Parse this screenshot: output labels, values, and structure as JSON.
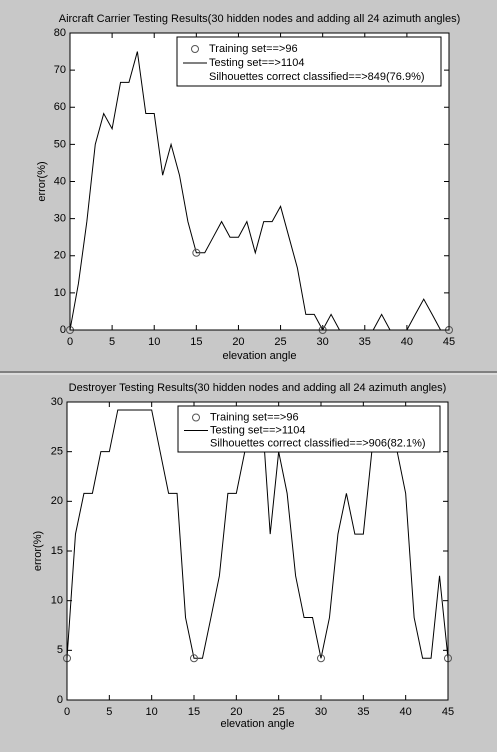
{
  "chart_data": [
    {
      "type": "line",
      "title": "Aircraft Carrier Testing Results(30 hidden nodes and adding all 24 azimuth angles)",
      "xlabel": "elevation angle",
      "ylabel": "error(%)",
      "x": [
        0,
        1,
        2,
        3,
        4,
        5,
        6,
        7,
        8,
        9,
        10,
        11,
        12,
        13,
        14,
        15,
        16,
        17,
        18,
        19,
        20,
        21,
        22,
        23,
        24,
        25,
        26,
        27,
        28,
        29,
        30,
        31,
        32,
        33,
        34,
        35,
        36,
        37,
        38,
        39,
        40,
        41,
        42,
        43,
        44,
        45
      ],
      "series": [
        {
          "name": "Training set==>96",
          "color": "#555555",
          "style": "marker",
          "values": [
            0,
            null,
            null,
            null,
            null,
            null,
            null,
            null,
            null,
            null,
            null,
            null,
            null,
            null,
            null,
            20.8,
            null,
            null,
            null,
            null,
            null,
            null,
            null,
            null,
            null,
            null,
            null,
            null,
            null,
            null,
            0,
            null,
            null,
            null,
            null,
            null,
            null,
            null,
            null,
            null,
            null,
            null,
            null,
            null,
            null,
            0
          ]
        },
        {
          "name": "Testing set==>1104",
          "color": "#000000",
          "style": "line",
          "values": [
            0,
            12.5,
            29.2,
            50,
            58.3,
            54.2,
            66.7,
            66.7,
            75,
            58.3,
            58.3,
            41.7,
            50,
            41.7,
            29.2,
            20.8,
            20.8,
            25,
            29.2,
            25,
            25,
            29.2,
            20.8,
            29.2,
            29.2,
            33.3,
            25,
            16.7,
            4.2,
            4.2,
            0,
            4.2,
            0,
            0,
            0,
            0,
            0,
            4.2,
            0,
            0,
            0,
            4.2,
            8.3,
            4.2,
            0,
            0
          ]
        }
      ],
      "annotation": "Silhouettes correct classified==>849(76.9%)",
      "legend": "upper right",
      "xlim": [
        0,
        45
      ],
      "xticks": [
        0,
        5,
        10,
        15,
        20,
        25,
        30,
        35,
        40,
        45
      ],
      "ylim": [
        0,
        80
      ],
      "yticks": [
        0,
        10,
        20,
        30,
        40,
        50,
        60,
        70,
        80
      ]
    },
    {
      "type": "line",
      "title": "Destroyer Testing Results(30 hidden nodes and adding all 24 azimuth angles)",
      "xlabel": "elevation angle",
      "ylabel": "error(%)",
      "x": [
        0,
        1,
        2,
        3,
        4,
        5,
        6,
        7,
        8,
        9,
        10,
        11,
        12,
        13,
        14,
        15,
        16,
        17,
        18,
        19,
        20,
        21,
        22,
        23,
        24,
        25,
        26,
        27,
        28,
        29,
        30,
        31,
        32,
        33,
        34,
        35,
        36,
        37,
        38,
        39,
        40,
        41,
        42,
        43,
        44,
        45
      ],
      "series": [
        {
          "name": "Training set==>96",
          "color": "#555555",
          "style": "marker",
          "values": [
            4.2,
            null,
            null,
            null,
            null,
            null,
            null,
            null,
            null,
            null,
            null,
            null,
            null,
            null,
            null,
            4.2,
            null,
            null,
            null,
            null,
            null,
            null,
            null,
            null,
            null,
            null,
            null,
            null,
            null,
            null,
            4.2,
            null,
            null,
            null,
            null,
            null,
            null,
            null,
            null,
            null,
            null,
            null,
            null,
            null,
            null,
            4.2
          ]
        },
        {
          "name": "Testing set==>1104",
          "color": "#000000",
          "style": "line",
          "values": [
            4.2,
            16.7,
            20.8,
            20.8,
            25,
            25,
            29.2,
            29.2,
            29.2,
            29.2,
            29.2,
            25,
            20.8,
            20.8,
            8.3,
            4.2,
            4.2,
            8.3,
            12.5,
            20.8,
            20.8,
            25,
            29.2,
            29.2,
            16.7,
            25,
            20.8,
            12.5,
            8.3,
            8.3,
            4.2,
            8.3,
            16.7,
            20.8,
            16.7,
            16.7,
            25,
            29.2,
            29.2,
            25,
            20.8,
            8.3,
            4.2,
            4.2,
            12.5,
            4.2
          ]
        }
      ],
      "annotation": "Silhouettes correct classified==>906(82.1%)",
      "legend": "upper right",
      "xlim": [
        0,
        45
      ],
      "xticks": [
        0,
        5,
        10,
        15,
        20,
        25,
        30,
        35,
        40,
        45
      ],
      "ylim": [
        0,
        30
      ],
      "yticks": [
        0,
        5,
        10,
        15,
        20,
        25,
        30
      ]
    }
  ]
}
